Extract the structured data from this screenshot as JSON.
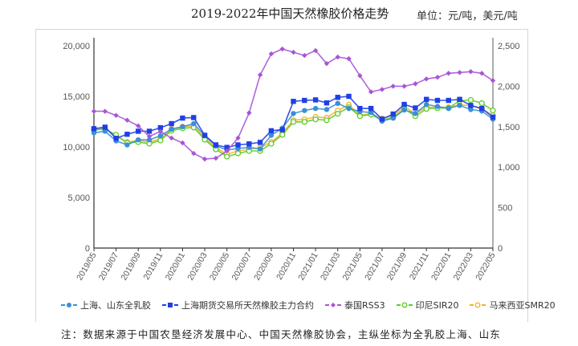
{
  "header": {
    "title": "2019-2022年中国天然橡胶价格走势",
    "unit": "单位：元/吨，美元/吨"
  },
  "note": "注：数据来源于中国农垦经济发展中心、中国天然橡胶协会，主纵坐标为全乳胶上海、山东",
  "chart_data": {
    "type": "line",
    "title": "2019-2022年中国天然橡胶价格走势",
    "unit_text": "单位：元/吨，美元/吨",
    "xlabel": "",
    "ylabel_left": "元/吨",
    "ylabel_right": "美元/吨",
    "ylim_left": [
      0,
      20000
    ],
    "ylim_right": [
      0,
      2500
    ],
    "yticks_left": [
      "0",
      "5,000",
      "10,000",
      "15,000",
      "20,000"
    ],
    "yticks_right": [
      "0",
      "500",
      "1,000",
      "1,500",
      "2,000",
      "2,500"
    ],
    "grid": false,
    "legend_position": "bottom",
    "x": [
      "2019/05",
      "2019/06",
      "2019/07",
      "2019/08",
      "2019/09",
      "2019/10",
      "2019/11",
      "2019/12",
      "2020/01",
      "2020/02",
      "2020/03",
      "2020/04",
      "2020/05",
      "2020/06",
      "2020/07",
      "2020/08",
      "2020/09",
      "2020/10",
      "2020/11",
      "2020/12",
      "2021/01",
      "2021/02",
      "2021/03",
      "2021/04",
      "2021/05",
      "2021/06",
      "2021/07",
      "2021/08",
      "2021/09",
      "2021/10",
      "2021/11",
      "2021/12",
      "2022/01",
      "2022/02",
      "2022/03",
      "2022/04",
      "2022/05"
    ],
    "xtick_labels": [
      "2019/05",
      "2019/07",
      "2019/09",
      "2019/11",
      "2020/01",
      "2020/03",
      "2020/05",
      "2020/07",
      "2020/09",
      "2020/11",
      "2021/01",
      "2021/03",
      "2021/05",
      "2021/07",
      "2021/09",
      "2021/11",
      "2022/01",
      "2022/03",
      "2022/05"
    ],
    "series": [
      {
        "name": "上海、山东全乳胶",
        "axis": "left",
        "color": "#3a8fd8",
        "marker": "circle",
        "values": [
          11400,
          11550,
          10600,
          10200,
          10700,
          10700,
          11100,
          11750,
          12000,
          12300,
          11100,
          10100,
          9700,
          9850,
          9950,
          9800,
          11150,
          11850,
          13300,
          13600,
          13800,
          13700,
          14300,
          13800,
          13500,
          13400,
          12550,
          12850,
          13650,
          13300,
          14200,
          14000,
          13800,
          14100,
          13700,
          13550,
          12750
        ]
      },
      {
        "name": "上海期货交易所天然橡胶主力合约",
        "axis": "left",
        "color": "#1f3fe6",
        "marker": "square",
        "values": [
          11800,
          11950,
          10850,
          11250,
          11550,
          11550,
          11900,
          12300,
          12850,
          12900,
          11150,
          10200,
          9950,
          10200,
          10300,
          10450,
          11600,
          11700,
          14500,
          14600,
          14650,
          14350,
          14900,
          15000,
          13800,
          13800,
          12750,
          13250,
          14200,
          13850,
          14700,
          14600,
          14600,
          14700,
          14100,
          13800,
          12950
        ]
      },
      {
        "name": "泰国RSS3",
        "axis": "right",
        "color": "#a855d6",
        "marker": "diamond",
        "values": [
          1690,
          1690,
          1640,
          1580,
          1510,
          1380,
          1440,
          1360,
          1300,
          1170,
          1100,
          1110,
          1200,
          1360,
          1670,
          2140,
          2400,
          2460,
          2420,
          2380,
          2440,
          2280,
          2360,
          2340,
          2130,
          1930,
          1960,
          2000,
          2000,
          2030,
          2090,
          2110,
          2160,
          2170,
          2180,
          2160,
          2070
        ]
      },
      {
        "name": "印尼SIR20",
        "axis": "right",
        "color": "#5ccd28",
        "marker": "circle-open",
        "values": [
          1460,
          1470,
          1400,
          1300,
          1310,
          1290,
          1330,
          1450,
          1480,
          1490,
          1340,
          1220,
          1130,
          1170,
          1200,
          1200,
          1290,
          1400,
          1560,
          1560,
          1590,
          1580,
          1660,
          1740,
          1630,
          1650,
          1580,
          1610,
          1720,
          1630,
          1720,
          1730,
          1730,
          1820,
          1830,
          1790,
          1700
        ]
      },
      {
        "name": "马来西亚SMR20",
        "axis": "right",
        "color": "#f5b22a",
        "marker": "circle-open",
        "values": [
          1470,
          1480,
          1380,
          1310,
          1330,
          1310,
          1350,
          1470,
          1500,
          1510,
          1360,
          1240,
          1160,
          1200,
          1220,
          1240,
          1310,
          1420,
          1580,
          1590,
          1620,
          1610,
          1700,
          1770,
          1640,
          1660,
          1600,
          1630,
          1750,
          1660,
          1740,
          1740,
          1740,
          1770,
          1760,
          1720,
          1640
        ]
      }
    ]
  }
}
